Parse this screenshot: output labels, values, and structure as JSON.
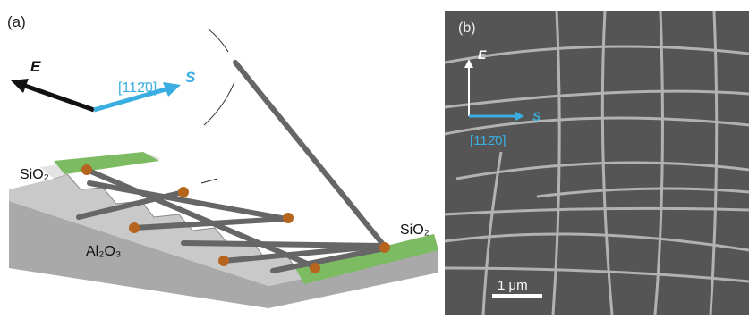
{
  "panel_a": {
    "label": "(a)",
    "field": "E",
    "direction": "[112̄0]",
    "step": "S",
    "left_oxide": "SiO₂",
    "right_oxide": "SiO₂",
    "substrate": "Al₂O₃"
  },
  "panel_b": {
    "label": "(b)",
    "field": "E",
    "step": "S",
    "direction": "[112̄0]",
    "scale": "1 μm"
  }
}
